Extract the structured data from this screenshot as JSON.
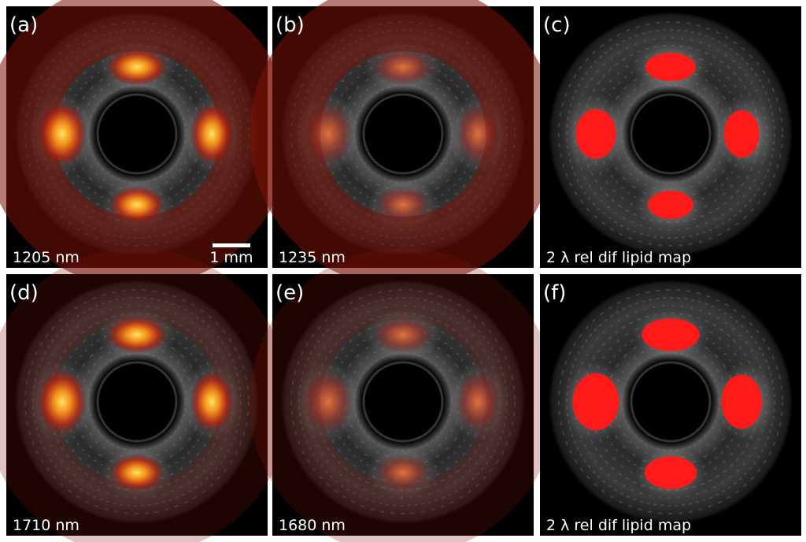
{
  "panels": [
    {
      "label": "(a)",
      "caption": "1205 nm",
      "scale_bar": "1 mm"
    },
    {
      "label": "(b)",
      "caption": "1235 nm"
    },
    {
      "label": "(c)",
      "caption": "2 λ rel dif lipid map"
    },
    {
      "label": "(d)",
      "caption": "1710 nm"
    },
    {
      "label": "(e)",
      "caption": "1680 nm"
    },
    {
      "label": "(f)",
      "caption": "2 λ rel dif lipid map"
    }
  ]
}
